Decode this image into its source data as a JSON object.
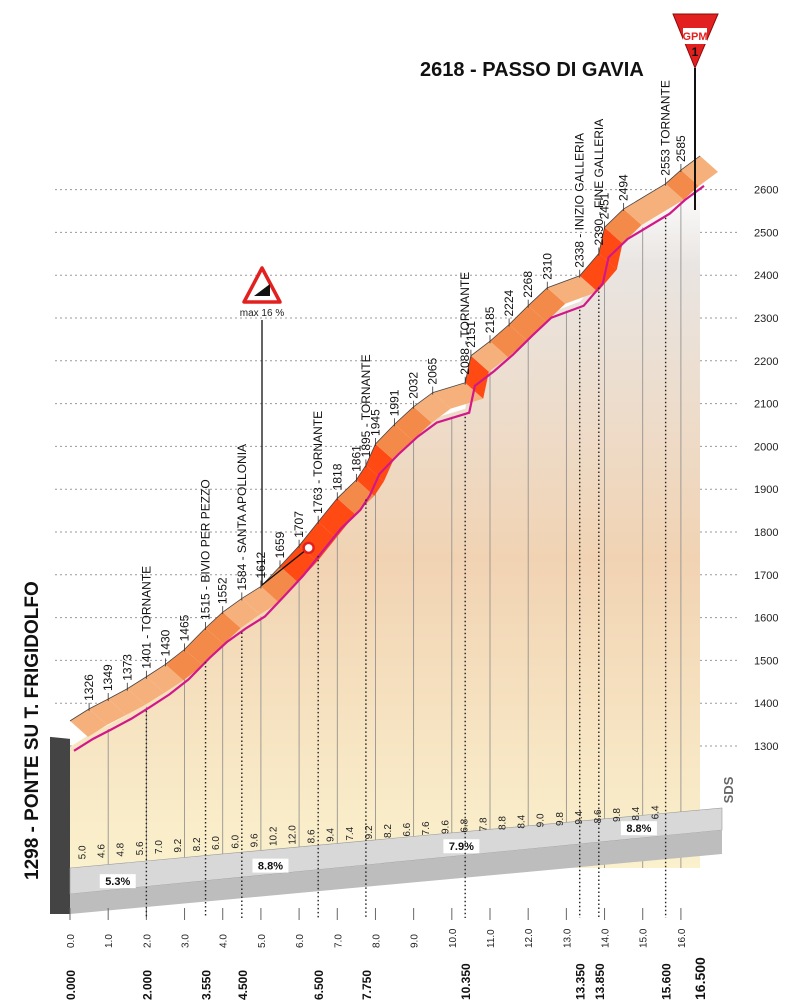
{
  "summit": {
    "label": "2618 - PASSO DI GAVIA",
    "badge_top": "GPM",
    "badge_bottom": "1"
  },
  "start": {
    "label": "1298 - PONTE SU T. FRIGIDOLFO"
  },
  "max_gradient": {
    "label": "max 16 %"
  },
  "logo": "SDS",
  "colors": {
    "climb_deep": "#ff4a14",
    "climb_orange": "#f48a4a",
    "climb_light": "#f6b07c",
    "profile_line": "#d2178a",
    "base_gray": "#bdbdbd",
    "badge_red": "#e32020"
  },
  "chart_data": {
    "type": "area",
    "title": "2618 - PASSO DI GAVIA",
    "xlabel": "",
    "ylabel": "",
    "xlim": [
      0,
      16.5
    ],
    "ylim": [
      1250,
      2618
    ],
    "y_ticks": [
      1300,
      1400,
      1500,
      1600,
      1700,
      1800,
      1900,
      2000,
      2100,
      2200,
      2300,
      2400,
      2500,
      2600
    ],
    "km_ticks": [
      0,
      1,
      2,
      3,
      4,
      5,
      6,
      7,
      8,
      9,
      10,
      11,
      12,
      13,
      14,
      15,
      16
    ],
    "km_tick_labels": [
      "0.0",
      "1.0",
      "2.0",
      "3.0",
      "4.0",
      "5.0",
      "6.0",
      "7.0",
      "8.0",
      "9.0",
      "10.0",
      "11.0",
      "12.0",
      "13.0",
      "14.0",
      "15.0",
      "16.0"
    ],
    "km_markers": [
      "0.000",
      "2.000",
      "3.550",
      "4.500",
      "6.500",
      "7.750",
      "10.350",
      "13.350",
      "13.850",
      "15.600",
      "16.500"
    ],
    "km_markers_x": [
      0,
      2.0,
      3.55,
      4.5,
      6.5,
      7.75,
      10.35,
      13.35,
      13.85,
      15.6,
      16.5
    ],
    "km_markers_bold": [
      "16.500"
    ],
    "gradients": [
      "5.0",
      "4.6",
      "4.8",
      "5.6",
      "7.0",
      "9.2",
      "8.2",
      "6.0",
      "6.0",
      "9.6",
      "10.2",
      "12.0",
      "8.6",
      "9.4",
      "7.4",
      "9.2",
      "8.2",
      "6.6",
      "7.6",
      "9.6",
      "6.8",
      "7.8",
      "8.8",
      "8.4",
      "9.0",
      "9.8",
      "9.4",
      "8.6",
      "9.8",
      "8.4",
      "6.4"
    ],
    "gradient_x": [
      0.25,
      0.75,
      1.25,
      1.75,
      2.25,
      2.75,
      3.25,
      3.75,
      4.25,
      4.75,
      5.25,
      5.75,
      6.25,
      6.75,
      7.25,
      7.75,
      8.25,
      8.75,
      9.25,
      9.75,
      10.25,
      10.75,
      11.25,
      11.75,
      12.25,
      12.75,
      13.25,
      13.75,
      14.25,
      14.75,
      15.25
    ],
    "segment_averages": [
      "5.3%",
      "8.8%",
      "7.9%",
      "8.8%"
    ],
    "segment_average_x": [
      1.25,
      5.25,
      10.25,
      14.9
    ],
    "elevation_points": [
      {
        "km": 0,
        "alt": 1298
      },
      {
        "km": 0.5,
        "alt": 1326
      },
      {
        "km": 1.0,
        "alt": 1349
      },
      {
        "km": 1.5,
        "alt": 1373
      },
      {
        "km": 2.0,
        "alt": 1401
      },
      {
        "km": 2.5,
        "alt": 1430
      },
      {
        "km": 3.0,
        "alt": 1465
      },
      {
        "km": 3.55,
        "alt": 1515
      },
      {
        "km": 4.0,
        "alt": 1552
      },
      {
        "km": 4.5,
        "alt": 1584
      },
      {
        "km": 5.0,
        "alt": 1612
      },
      {
        "km": 5.5,
        "alt": 1659
      },
      {
        "km": 6.0,
        "alt": 1707
      },
      {
        "km": 6.5,
        "alt": 1763
      },
      {
        "km": 7.0,
        "alt": 1818
      },
      {
        "km": 7.5,
        "alt": 1861
      },
      {
        "km": 7.75,
        "alt": 1895
      },
      {
        "km": 8.0,
        "alt": 1945
      },
      {
        "km": 8.5,
        "alt": 1991
      },
      {
        "km": 9.0,
        "alt": 2032
      },
      {
        "km": 9.5,
        "alt": 2065
      },
      {
        "km": 10.35,
        "alt": 2088
      },
      {
        "km": 10.5,
        "alt": 2151
      },
      {
        "km": 11.0,
        "alt": 2185
      },
      {
        "km": 11.5,
        "alt": 2224
      },
      {
        "km": 12.0,
        "alt": 2268
      },
      {
        "km": 12.5,
        "alt": 2310
      },
      {
        "km": 13.35,
        "alt": 2338
      },
      {
        "km": 13.85,
        "alt": 2390
      },
      {
        "km": 14.0,
        "alt": 2451
      },
      {
        "km": 14.5,
        "alt": 2494
      },
      {
        "km": 15.6,
        "alt": 2553
      },
      {
        "km": 16.0,
        "alt": 2585
      },
      {
        "km": 16.5,
        "alt": 2618
      }
    ],
    "waypoints": [
      {
        "km": 0.5,
        "alt": 1326,
        "label": "1326"
      },
      {
        "km": 1.0,
        "alt": 1349,
        "label": "1349"
      },
      {
        "km": 1.5,
        "alt": 1373,
        "label": "1373"
      },
      {
        "km": 2.0,
        "alt": 1401,
        "label": "1401 - TORNANTE"
      },
      {
        "km": 2.5,
        "alt": 1430,
        "label": "1430"
      },
      {
        "km": 3.0,
        "alt": 1465,
        "label": "1465"
      },
      {
        "km": 3.55,
        "alt": 1515,
        "label": "1515 - BIVIO PER PEZZO"
      },
      {
        "km": 4.0,
        "alt": 1552,
        "label": "1552"
      },
      {
        "km": 4.5,
        "alt": 1584,
        "label": "1584 - SANTA APOLLONIA"
      },
      {
        "km": 5.0,
        "alt": 1612,
        "label": "1612"
      },
      {
        "km": 5.5,
        "alt": 1659,
        "label": "1659"
      },
      {
        "km": 6.0,
        "alt": 1707,
        "label": "1707"
      },
      {
        "km": 6.5,
        "alt": 1763,
        "label": "1763 - TORNANTE"
      },
      {
        "km": 7.0,
        "alt": 1818,
        "label": "1818"
      },
      {
        "km": 7.5,
        "alt": 1861,
        "label": "1861"
      },
      {
        "km": 7.75,
        "alt": 1895,
        "label": "1895 - TORNANTE"
      },
      {
        "km": 8.0,
        "alt": 1945,
        "label": "1945"
      },
      {
        "km": 8.5,
        "alt": 1991,
        "label": "1991"
      },
      {
        "km": 9.0,
        "alt": 2032,
        "label": "2032"
      },
      {
        "km": 9.5,
        "alt": 2065,
        "label": "2065"
      },
      {
        "km": 10.35,
        "alt": 2088,
        "label": "2088 - TORNANTE"
      },
      {
        "km": 10.5,
        "alt": 2151,
        "label": "2151"
      },
      {
        "km": 11.0,
        "alt": 2185,
        "label": "2185"
      },
      {
        "km": 11.5,
        "alt": 2224,
        "label": "2224"
      },
      {
        "km": 12.0,
        "alt": 2268,
        "label": "2268"
      },
      {
        "km": 12.5,
        "alt": 2310,
        "label": "2310"
      },
      {
        "km": 13.35,
        "alt": 2338,
        "label": "2338 - INIZIO GALLERIA"
      },
      {
        "km": 13.85,
        "alt": 2390,
        "label": "2390 - FINE GALLERIA"
      },
      {
        "km": 14.0,
        "alt": 2451,
        "label": "2451"
      },
      {
        "km": 14.5,
        "alt": 2494,
        "label": "2494"
      },
      {
        "km": 15.6,
        "alt": 2553,
        "label": "2553 TORNANTE"
      },
      {
        "km": 16.0,
        "alt": 2585,
        "label": "2585"
      }
    ],
    "max_gradient_km": 6.25,
    "grid": true
  }
}
